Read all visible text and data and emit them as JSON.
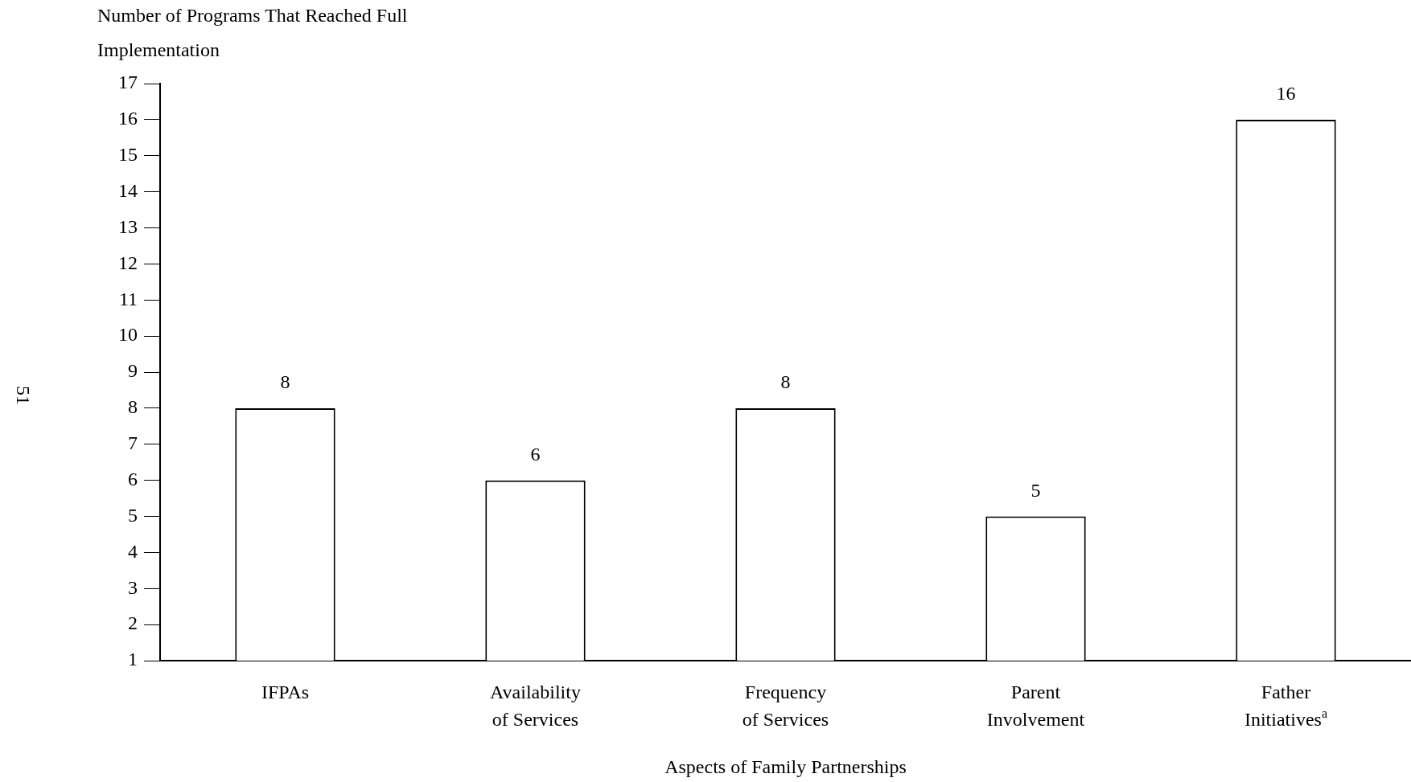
{
  "chart_data": {
    "type": "bar",
    "title": "Number of Programs That Reached Full Implementation",
    "xlabel": "Aspects of Family Partnerships",
    "categories": [
      "IFPAs",
      "Availability of Services",
      "Frequency of Services",
      "Parent Involvement",
      "Father Initiatives$^{a}$"
    ],
    "values": [
      8,
      6,
      8,
      5,
      16
    ],
    "color": "#ffffff",
    "ylim": [
      1,
      17
    ],
    "yticks": [
      1,
      2,
      3,
      4,
      5,
      6,
      7,
      8,
      9,
      10,
      11,
      12,
      13,
      14,
      15,
      16,
      17
    ],
    "grid": false,
    "legend": false,
    "data_labels": true,
    "annotations": [
      "51"
    ]
  }
}
